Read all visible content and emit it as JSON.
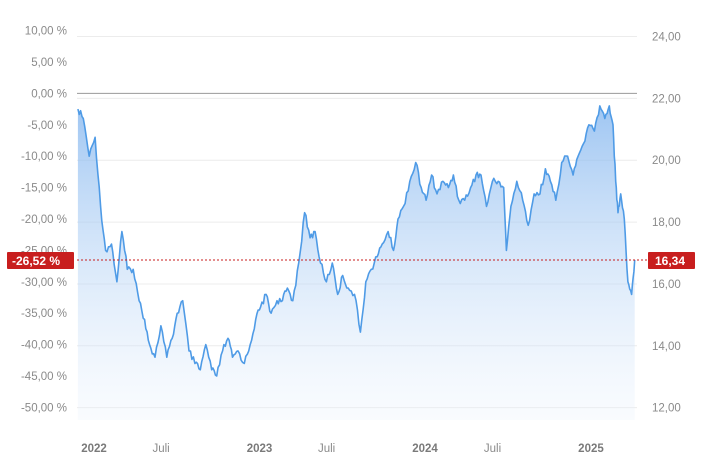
{
  "chart_data": {
    "type": "area",
    "title": "",
    "xlabel": "",
    "ylabel": "",
    "x_range": [
      "2022-01-01",
      "2025-05-20"
    ],
    "y_left": {
      "unit": "%",
      "range": [
        -52,
        12
      ],
      "ticks": [
        "10,00 %",
        "5,00 %",
        "0,00 %",
        "-5,00 %",
        "-10,00 %",
        "-15,00 %",
        "-20,00 %",
        "-25,00 %",
        "-30,00 %",
        "-35,00 %",
        "-40,00 %",
        "-45,00 %",
        "-50,00 %"
      ],
      "tick_values": [
        10,
        5,
        0,
        -5,
        -10,
        -15,
        -20,
        -25,
        -30,
        -35,
        -40,
        -45,
        -50
      ]
    },
    "y_right": {
      "range": [
        11.6,
        24.6
      ],
      "ticks": [
        "24,00",
        "22,00",
        "20,00",
        "18,00",
        "16,00",
        "14,00",
        "12,00"
      ],
      "tick_values": [
        24,
        22,
        20,
        18,
        16,
        14,
        12
      ]
    },
    "x_ticks": [
      {
        "label": "2022",
        "date": "2022-01-01",
        "year": true
      },
      {
        "label": "Juli",
        "date": "2022-07-01",
        "year": false
      },
      {
        "label": "2023",
        "date": "2023-01-01",
        "year": true
      },
      {
        "label": "Juli",
        "date": "2023-07-01",
        "year": false
      },
      {
        "label": "2024",
        "date": "2024-01-01",
        "year": true
      },
      {
        "label": "Juli",
        "date": "2024-07-01",
        "year": false
      },
      {
        "label": "2025",
        "date": "2025-01-01",
        "year": true
      }
    ],
    "grid": true,
    "reference_line": {
      "value": 0
    },
    "current": {
      "percent": -26.52,
      "price": 16.34,
      "percent_label": "-26,52 %",
      "price_label": "16,34"
    },
    "series": [
      {
        "x": [
          "2022-01-03",
          "2022-01-15",
          "2022-01-28",
          "2022-02-10",
          "2022-02-22",
          "2022-03-05",
          "2022-03-18",
          "2022-03-30",
          "2022-04-10",
          "2022-04-22",
          "2022-05-05",
          "2022-05-18",
          "2022-05-30",
          "2022-06-10",
          "2022-06-22",
          "2022-07-05",
          "2022-07-18",
          "2022-07-30",
          "2022-08-10",
          "2022-08-22",
          "2022-09-05",
          "2022-09-18",
          "2022-09-30",
          "2022-10-12",
          "2022-10-25",
          "2022-11-05",
          "2022-11-18",
          "2022-11-30",
          "2022-12-10",
          "2022-12-22",
          "2023-01-05",
          "2023-01-18",
          "2023-01-30",
          "2023-02-10",
          "2023-02-22",
          "2023-03-05",
          "2023-03-18",
          "2023-03-30",
          "2023-04-10",
          "2023-04-22",
          "2023-05-05",
          "2023-05-18",
          "2023-05-30",
          "2023-06-10",
          "2023-06-22",
          "2023-07-05",
          "2023-07-18",
          "2023-07-30",
          "2023-08-10",
          "2023-08-22",
          "2023-09-05",
          "2023-09-18",
          "2023-09-30",
          "2023-10-12",
          "2023-10-25",
          "2023-11-05",
          "2023-11-18",
          "2023-11-30",
          "2023-12-10",
          "2023-12-22",
          "2024-01-05",
          "2024-01-18",
          "2024-01-30",
          "2024-02-10",
          "2024-02-22",
          "2024-03-05",
          "2024-03-18",
          "2024-03-30",
          "2024-04-10",
          "2024-04-22",
          "2024-05-05",
          "2024-05-18",
          "2024-05-30",
          "2024-06-10",
          "2024-06-22",
          "2024-07-05",
          "2024-07-18",
          "2024-07-30",
          "2024-08-05",
          "2024-08-15",
          "2024-08-28",
          "2024-09-10",
          "2024-09-22",
          "2024-10-05",
          "2024-10-18",
          "2024-10-30",
          "2024-11-10",
          "2024-11-22",
          "2024-12-05",
          "2024-12-18",
          "2024-12-30",
          "2025-01-10",
          "2025-01-22",
          "2025-02-03",
          "2025-02-15",
          "2025-02-27",
          "2025-03-10",
          "2025-03-20",
          "2025-03-28",
          "2025-04-03",
          "2025-04-08",
          "2025-04-14",
          "2025-04-22",
          "2025-04-30",
          "2025-05-08",
          "2025-05-15"
        ],
        "y": [
          -2.5,
          -4,
          -10,
          -7,
          -18,
          -25,
          -24,
          -30,
          -22,
          -28,
          -28,
          -33,
          -36,
          -40,
          -42,
          -37,
          -42,
          -39,
          -35,
          -33,
          -41,
          -43,
          -44,
          -40,
          -44,
          -45,
          -41,
          -39,
          -42,
          -41,
          -43,
          -40,
          -36,
          -34,
          -32,
          -35,
          -33,
          -33,
          -31,
          -33,
          -27,
          -19,
          -23,
          -22,
          -27,
          -30,
          -27,
          -32,
          -29,
          -31,
          -32,
          -38,
          -30,
          -28,
          -26,
          -24,
          -22,
          -25,
          -20,
          -18,
          -14,
          -11,
          -15,
          -17,
          -13,
          -16,
          -14,
          -15,
          -13,
          -17,
          -17,
          -15,
          -13,
          -13,
          -18,
          -14,
          -14,
          -15,
          -25,
          -18,
          -14,
          -17,
          -21,
          -16,
          -16,
          -12,
          -14,
          -17,
          -11,
          -10,
          -13,
          -10,
          -8,
          -5,
          -6,
          -2,
          -4,
          -2,
          -5,
          -14,
          -19,
          -16,
          -20,
          -30,
          -32,
          -26.52
        ]
      }
    ]
  }
}
